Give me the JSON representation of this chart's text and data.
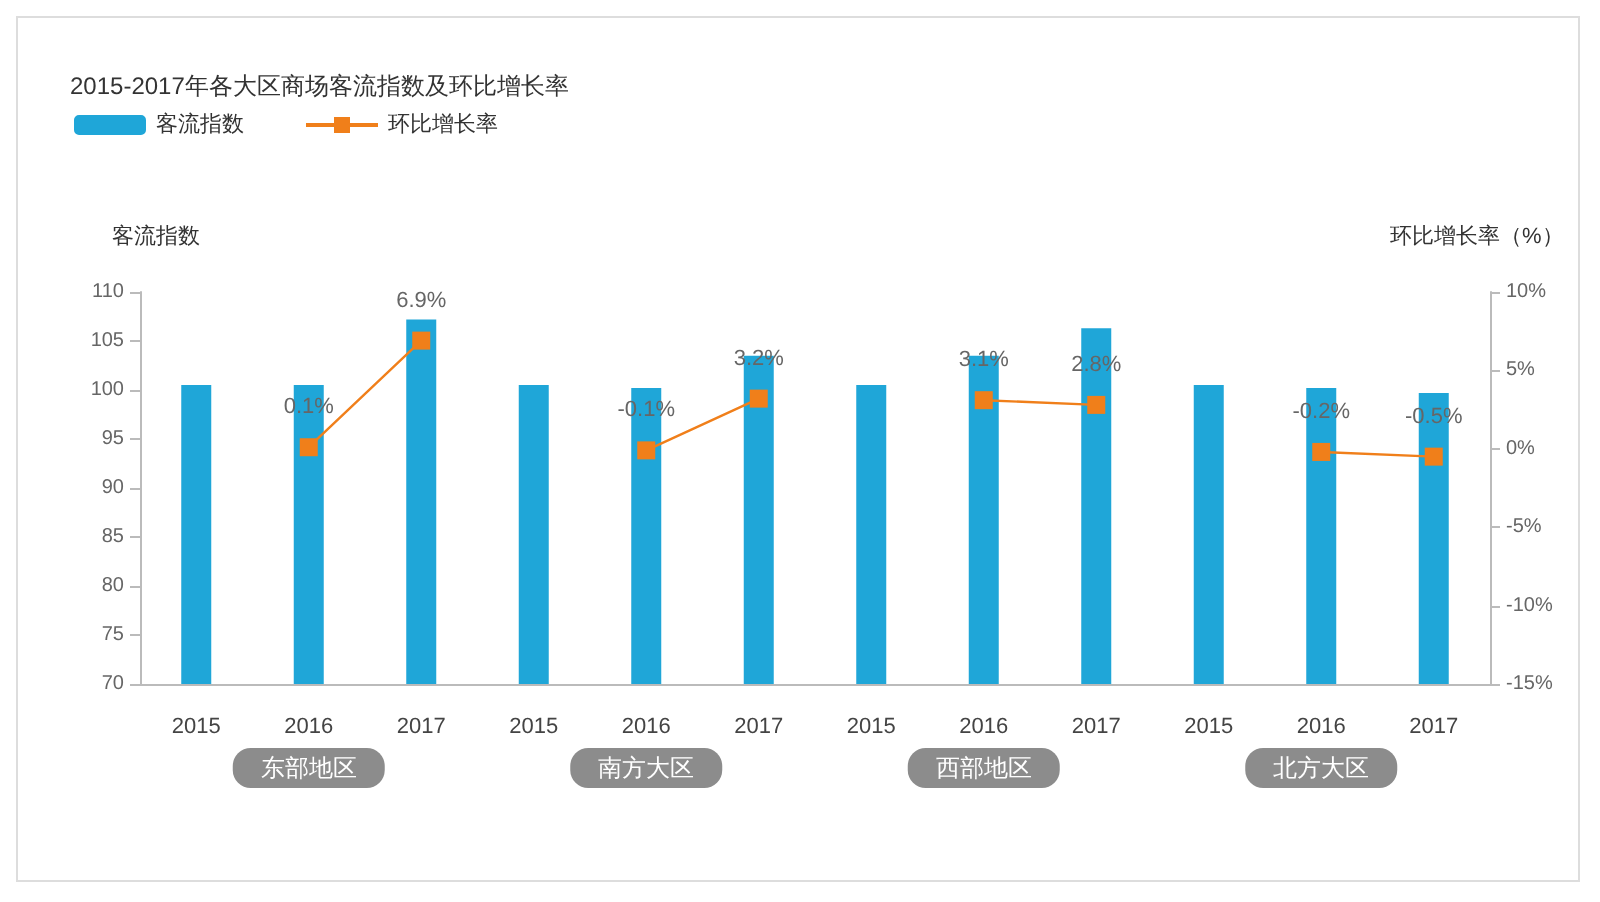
{
  "chart_data": {
    "type": "bar",
    "title": "2015-2017年各大区商场客流指数及环比增长率",
    "categories": [
      "2015",
      "2016",
      "2017",
      "2015",
      "2016",
      "2017",
      "2015",
      "2016",
      "2017",
      "2015",
      "2016",
      "2017"
    ],
    "series": [
      {
        "name": "客流指数",
        "color": "#1fa6d8",
        "values": [
          100.5,
          100.5,
          107.2,
          100.5,
          100.2,
          103.5,
          100.5,
          103.5,
          106.3,
          100.5,
          100.2,
          99.7
        ]
      },
      {
        "name": "环比增长率",
        "type": "line",
        "axis": "y2",
        "color": "#f07f1a",
        "marker": "square",
        "values": [
          null,
          0.1,
          6.9,
          null,
          -0.1,
          3.2,
          null,
          3.1,
          2.8,
          null,
          -0.2,
          -0.5
        ],
        "value_labels": [
          null,
          "0.1%",
          "6.9%",
          null,
          "-0.1%",
          "3.2%",
          null,
          "3.1%",
          "2.8%",
          null,
          "-0.2%",
          "-0.5%"
        ]
      }
    ],
    "ylabel": "客流指数",
    "y2label": "环比增长率（%）",
    "ylim": [
      70,
      110
    ],
    "yticks": [
      70,
      75,
      80,
      85,
      90,
      95,
      100,
      105,
      110
    ],
    "y2lim": [
      -15,
      10
    ],
    "y2ticks": [
      {
        "value": -15,
        "label": "-15%"
      },
      {
        "value": -10,
        "label": "-10%"
      },
      {
        "value": -5,
        "label": "-5%"
      },
      {
        "value": 0,
        "label": "0%"
      },
      {
        "value": 5,
        "label": "5%"
      },
      {
        "value": 10,
        "label": "10%"
      }
    ],
    "annotations": [
      "东部地区",
      "南方大区",
      "西部地区",
      "北方大区"
    ],
    "grid": false,
    "legend": "top left"
  }
}
